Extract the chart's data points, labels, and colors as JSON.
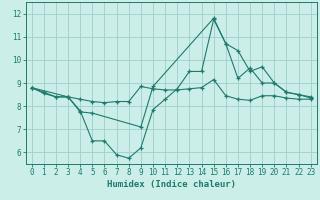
{
  "title": "",
  "xlabel": "Humidex (Indice chaleur)",
  "bg_color": "#cceee8",
  "line_color": "#1e7a6e",
  "grid_color": "#9ecece",
  "xlim": [
    -0.5,
    23.5
  ],
  "ylim": [
    5.5,
    12.5
  ],
  "xticks": [
    0,
    1,
    2,
    3,
    4,
    5,
    6,
    7,
    8,
    9,
    10,
    11,
    12,
    13,
    14,
    15,
    16,
    17,
    18,
    19,
    20,
    21,
    22,
    23
  ],
  "yticks": [
    6,
    7,
    8,
    9,
    10,
    11,
    12
  ],
  "line1_x": [
    0,
    1,
    2,
    3,
    4,
    5,
    6,
    7,
    8,
    9,
    10,
    11,
    12,
    13,
    14,
    15,
    16,
    17,
    18,
    19,
    20,
    21,
    22,
    23
  ],
  "line1_y": [
    8.8,
    8.6,
    8.4,
    8.4,
    7.8,
    6.5,
    6.5,
    5.9,
    5.75,
    6.2,
    7.85,
    8.3,
    8.75,
    9.5,
    9.5,
    11.75,
    10.7,
    10.4,
    9.5,
    9.7,
    9.0,
    8.6,
    8.5,
    8.4
  ],
  "line2_x": [
    0,
    1,
    2,
    3,
    4,
    5,
    6,
    7,
    8,
    9,
    10,
    11,
    12,
    13,
    14,
    15,
    16,
    17,
    18,
    19,
    20,
    21,
    22,
    23
  ],
  "line2_y": [
    8.8,
    8.55,
    8.4,
    8.4,
    8.3,
    8.2,
    8.15,
    8.2,
    8.2,
    8.85,
    8.75,
    8.7,
    8.7,
    8.75,
    8.8,
    9.15,
    8.45,
    8.3,
    8.25,
    8.45,
    8.45,
    8.35,
    8.3,
    8.3
  ],
  "line3_x": [
    0,
    3,
    4,
    5,
    9,
    10,
    15,
    16,
    17,
    18,
    19,
    20,
    21,
    22,
    23
  ],
  "line3_y": [
    8.8,
    8.4,
    7.75,
    7.7,
    7.1,
    8.85,
    11.8,
    10.7,
    9.2,
    9.65,
    9.0,
    9.0,
    8.6,
    8.5,
    8.35
  ]
}
